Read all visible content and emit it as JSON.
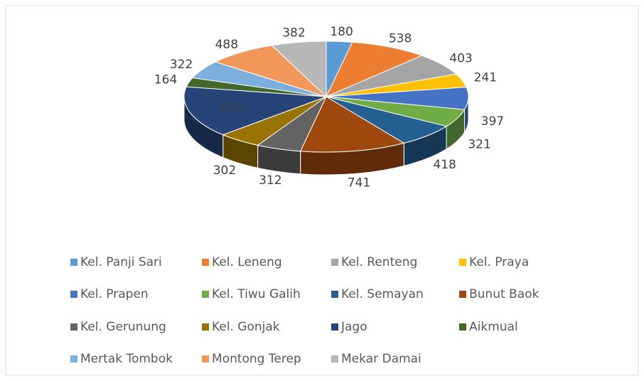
{
  "chart_data": {
    "type": "pie",
    "categories": [
      "Kel. Panji Sari",
      "Kel. Leneng",
      "Kel. Renteng",
      "Kel. Praya",
      "Kel. Prapen",
      "Kel. Tiwu Galih",
      "Kel. Semayan",
      "Bunut Baok",
      "Kel. Gerunung",
      "Kel. Gonjak",
      "Jago",
      "Aikmual",
      "Mertak Tombok",
      "Montong Terep",
      "Mekar Damai"
    ],
    "values": [
      180,
      538,
      403,
      241,
      397,
      321,
      418,
      741,
      312,
      302,
      913,
      164,
      322,
      488,
      382
    ],
    "colors": [
      "#5B9BD5",
      "#ED7D31",
      "#A5A5A5",
      "#FFC000",
      "#4472C4",
      "#70AD47",
      "#255E91",
      "#9E480E",
      "#636363",
      "#997300",
      "#264478",
      "#43682B",
      "#7CAFDD",
      "#F1975A",
      "#B7B7B7"
    ],
    "legend": "bottom"
  }
}
